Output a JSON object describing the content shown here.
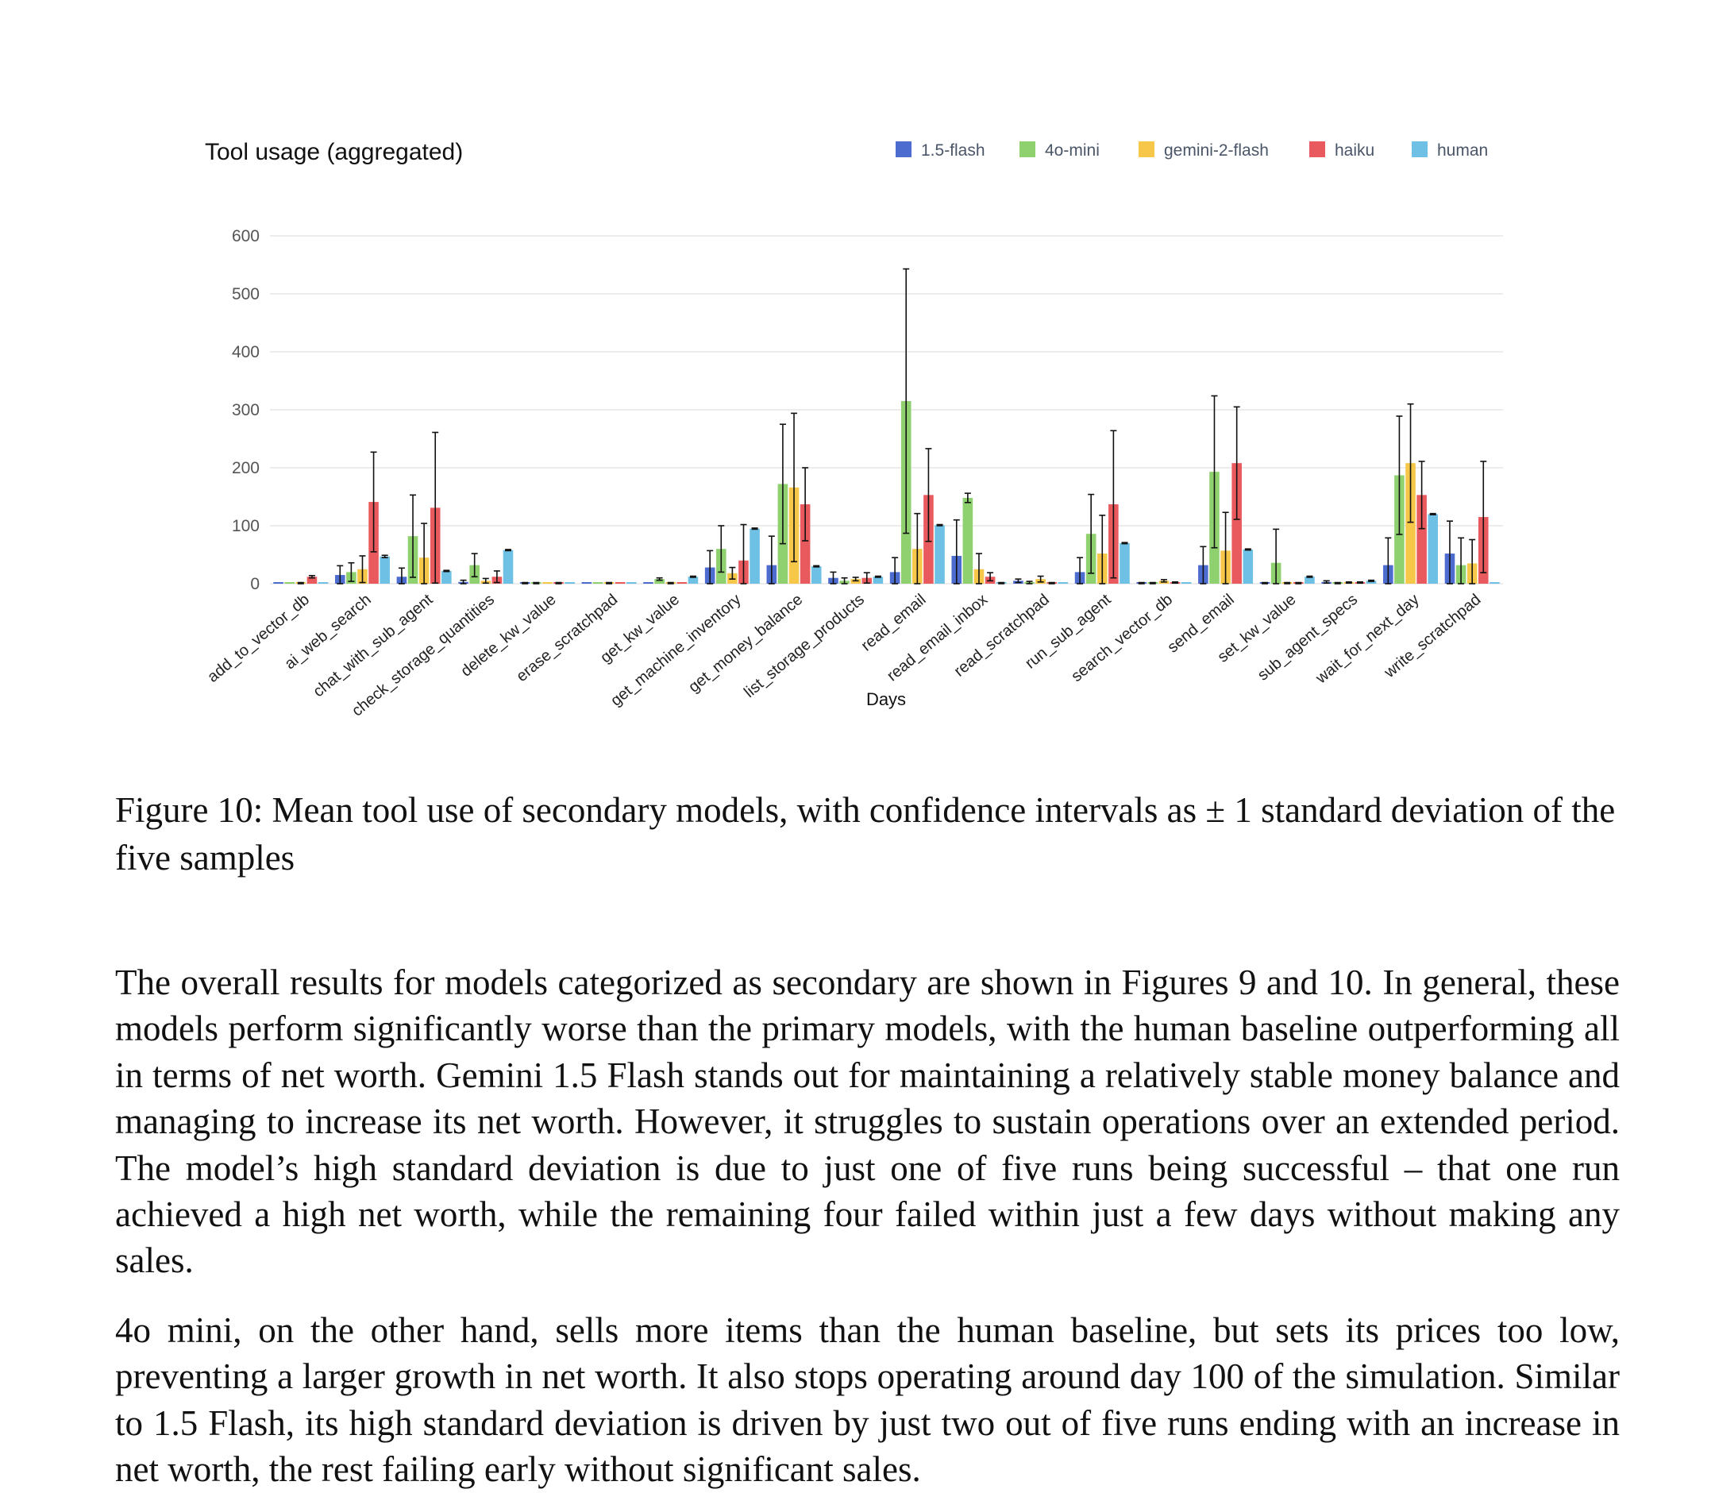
{
  "figure": {
    "caption": "Figure 10: Mean tool use of secondary models, with confidence intervals as ± 1 standard deviation of the five samples"
  },
  "body": {
    "paragraphs": [
      "The overall results for models categorized as secondary are shown in Figures 9 and 10. In general, these models perform significantly worse than the primary models, with the human baseline outperforming all in terms of net worth. Gemini 1.5 Flash stands out for maintaining a relatively stable money balance and managing to increase its net worth.  However, it struggles to sustain operations over an extended period. The model’s high standard deviation is due to just one of five runs being successful – that one run achieved a high net worth, while the remaining four failed within just a few days without making any sales.",
      "4o mini, on the other hand, sells more items than the human baseline, but sets its prices too low, preventing a larger growth in net worth. It also stops operating around day 100 of the simulation. Similar to 1.5 Flash, its high standard deviation is driven by just two out of five runs ending with an increase in net worth, the rest failing early without significant sales."
    ]
  },
  "chart_data": {
    "type": "bar",
    "title": "Tool usage (aggregated)",
    "xlabel": "Days",
    "ylabel": "",
    "ylim": [
      0,
      600
    ],
    "yticks": [
      0,
      100,
      200,
      300,
      400,
      500,
      600
    ],
    "grid": true,
    "legend_position": "top-right",
    "categories": [
      "add_to_vector_db",
      "ai_web_search",
      "chat_with_sub_agent",
      "check_storage_quantities",
      "delete_kw_value",
      "erase_scratchpad",
      "get_kw_value",
      "get_machine_inventory",
      "get_money_balance",
      "list_storage_products",
      "read_email",
      "read_email_inbox",
      "read_scratchpad",
      "run_sub_agent",
      "search_vector_db",
      "send_email",
      "set_kw_value",
      "sub_agent_specs",
      "wait_for_next_day",
      "write_scratchpad"
    ],
    "series": [
      {
        "name": "1.5-flash",
        "color": "#4c6cd0",
        "values": [
          0,
          15,
          12,
          3,
          1,
          0,
          0,
          28,
          32,
          10,
          20,
          48,
          5,
          20,
          1,
          32,
          1,
          3,
          32,
          52
        ],
        "errors": [
          0,
          16,
          15,
          3,
          1,
          0,
          0,
          29,
          50,
          10,
          25,
          62,
          3,
          25,
          1,
          32,
          1,
          2,
          47,
          56
        ]
      },
      {
        "name": "4o-mini",
        "color": "#8fd06f",
        "values": [
          0,
          20,
          82,
          32,
          1,
          0,
          8,
          60,
          172,
          5,
          315,
          148,
          2,
          86,
          1,
          193,
          36,
          1,
          187,
          32
        ],
        "errors": [
          0,
          16,
          71,
          20,
          1,
          0,
          2,
          40,
          103,
          5,
          228,
          8,
          2,
          68,
          1,
          131,
          58,
          1,
          102,
          47
        ]
      },
      {
        "name": "gemini-2-flash",
        "color": "#f7c749",
        "values": [
          1,
          25,
          45,
          5,
          0,
          1,
          1,
          18,
          166,
          8,
          60,
          25,
          8,
          52,
          5,
          57,
          1,
          2,
          208,
          35
        ],
        "errors": [
          1,
          23,
          59,
          4,
          0,
          1,
          1,
          10,
          128,
          3,
          61,
          27,
          5,
          66,
          2,
          66,
          1,
          1,
          102,
          41
        ]
      },
      {
        "name": "haiku",
        "color": "#e85a5e",
        "values": [
          12,
          141,
          131,
          12,
          1,
          0,
          0,
          40,
          137,
          10,
          153,
          12,
          1,
          137,
          2,
          208,
          1,
          2,
          153,
          115
        ],
        "errors": [
          2,
          86,
          130,
          10,
          1,
          0,
          0,
          62,
          63,
          9,
          80,
          7,
          1,
          127,
          1,
          97,
          1,
          1,
          58,
          96
        ]
      },
      {
        "name": "human",
        "color": "#6ec1e4",
        "values": [
          0,
          47,
          22,
          58,
          0,
          0,
          12,
          95,
          30,
          12,
          101,
          1,
          0,
          70,
          0,
          59,
          12,
          5,
          120,
          0
        ],
        "errors": [
          0,
          2,
          1,
          1,
          0,
          0,
          1,
          1,
          1,
          1,
          1,
          1,
          0,
          1,
          0,
          1,
          1,
          1,
          1,
          0
        ]
      }
    ]
  }
}
